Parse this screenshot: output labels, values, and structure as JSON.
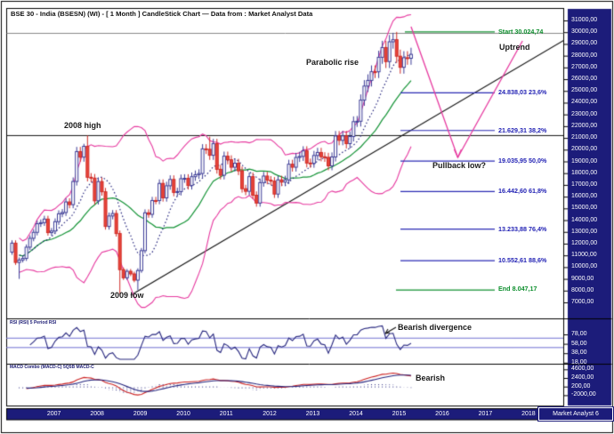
{
  "window": {
    "title": "BSE 30 - India (BSESN) (WI) - [ 1 Month ] CandleStick Chart — Data from : Market Analyst Data",
    "watermark": "Market Analyst 6"
  },
  "annotations": {
    "high_2008": "2008 high",
    "low_2009": "2009 low",
    "parabolic": "Parabolic rise",
    "uptrend": "Uptrend",
    "pullback": "Pullback low?",
    "bearish_divergence": "Bearish divergence",
    "bearish": "Bearish"
  },
  "colors": {
    "axis_bg": "#1c1c7a",
    "axis_text": "#ffffff",
    "bull_candle_fill": "#ffffff",
    "bull_candle_line": "#3c3c96",
    "bear_candle_fill": "#e8453a",
    "bear_candle_line": "#cf2b26",
    "band_magenta": "#e6399f",
    "ma_green": "#149336",
    "ma_dotted": "#26267e",
    "fib_blue": "#2a2ab4",
    "fib_green": "#0e8f2e",
    "trend_black": "#111111",
    "rsi_line": "#26267e",
    "rsi_hline": "#6f6fd0",
    "macd_red": "#cc2222",
    "macd_blue": "#26267e",
    "hist_navy": "#26267e",
    "border": "#000000"
  },
  "chart_data": {
    "type": "candlestick",
    "symbol": "BSE 30 - India (BSESN)",
    "interval": "1 Month",
    "source": "Market Analyst Data",
    "start_month": "2006-04",
    "prev_close_seed": 11280,
    "closes": [
      12043,
      10399,
      10609,
      10744,
      11699,
      12454,
      12962,
      13696,
      13787,
      14091,
      12938,
      13072,
      13872,
      14544,
      14651,
      15551,
      15319,
      17291,
      19838,
      19363,
      20287,
      17649,
      17579,
      15644,
      17287,
      16416,
      13462,
      14356,
      14565,
      12860,
      9788,
      9093,
      9647,
      9424,
      8892,
      9709,
      11403,
      14625,
      14494,
      15670,
      15667,
      17127,
      15896,
      16926,
      17465,
      16358,
      16430,
      17528,
      17559,
      16945,
      17701,
      17868,
      17971,
      20069,
      20032,
      19521,
      20509,
      18328,
      17823,
      19445,
      19136,
      18503,
      18846,
      18197,
      16677,
      16454,
      17705,
      16123,
      15455,
      17194,
      17753,
      17404,
      17319,
      16219,
      17430,
      17236,
      17430,
      18763,
      18505,
      19340,
      19427,
      19895,
      18862,
      18836,
      19504,
      19760,
      19396,
      19346,
      18620,
      19380,
      21165,
      20792,
      21171,
      20514,
      21120,
      22386,
      22418,
      24217,
      25414,
      25895,
      26638,
      26631,
      27866,
      28694,
      27499,
      29183,
      29362,
      27957,
      27011,
      27828,
      27781,
      28115
    ],
    "extremes": {
      "2006-06": {
        "low": 9000
      },
      "2007-12": {
        "high": 20498
      },
      "2008-01": {
        "high": 21207
      },
      "2008-10": {
        "low": 7697
      },
      "2009-03": {
        "low": 8047.17
      },
      "2010-11": {
        "high": 21109
      },
      "2015-03": {
        "high": 30024.74
      }
    },
    "price_axis": {
      "max": 31000,
      "min": 7000,
      "step": 1000,
      "decimal_suffix": ",00"
    },
    "years": [
      2007,
      2008,
      2009,
      2010,
      2011,
      2012,
      2013,
      2014,
      2015,
      2016,
      2017,
      2018
    ],
    "overlays": {
      "bollinger_period": 20,
      "bollinger_mult": 2,
      "sma_dotted_period": 10,
      "horizontal_2008_high_price": 21200,
      "trendline": {
        "from": {
          "month": "2009-01",
          "price": 7600
        },
        "to": {
          "month": "2019-02",
          "price": 29400
        }
      },
      "projection_zigzag": [
        {
          "month": "2015-07",
          "price": 30470
        },
        {
          "month": "2016-08",
          "price": 19340
        },
        {
          "month": "2018-02",
          "price": 29260
        }
      ]
    },
    "fibonacci": {
      "start": {
        "label": "Start 30.024,74",
        "price": 30024.74
      },
      "end": {
        "label": "End 8.047,17",
        "price": 8047.17
      },
      "levels": [
        {
          "pct": "23,6%",
          "price": 24838.03,
          "label": "24.838,03 23,6%"
        },
        {
          "pct": "38,2%",
          "price": 21629.31,
          "label": "21.629,31 38,2%"
        },
        {
          "pct": "50,0%",
          "price": 19035.95,
          "label": "19.035,95 50,0%"
        },
        {
          "pct": "61,8%",
          "price": 16442.6,
          "label": "16.442,60 61,8%"
        },
        {
          "pct": "76,4%",
          "price": 13233.88,
          "label": "13.233,88 76,4%"
        },
        {
          "pct": "88,6%",
          "price": 10552.61,
          "label": "10.552,61 88,6%"
        }
      ]
    },
    "rsi": {
      "label": "RSI (RSI) 5 Period RSI",
      "period": 5,
      "hlines": [
        70,
        50
      ],
      "ticks": [
        78,
        58,
        38,
        18
      ]
    },
    "macd": {
      "label": "MACD Combo (MACD-C) 5Q5B MACD-C",
      "fast": 12,
      "slow": 26,
      "signal": 9,
      "ticks": [
        4600,
        2400,
        200,
        -2000
      ]
    }
  }
}
